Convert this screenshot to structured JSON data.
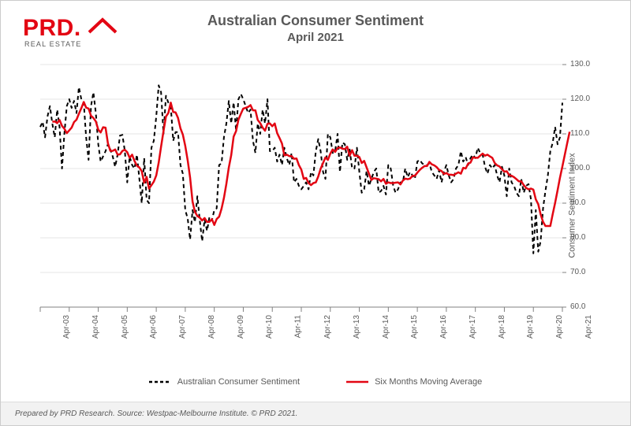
{
  "logo": {
    "main_text": "PRD",
    "sub_text": "REAL ESTATE",
    "brand_color": "#e30613",
    "sub_color": "#595959"
  },
  "chart": {
    "type": "line",
    "title": "Australian Consumer Sentiment",
    "subtitle": "April 2021",
    "y_axis_label": "Consumer Sentiment Index",
    "background_color": "#ffffff",
    "title_color": "#595959",
    "axis_text_color": "#595959",
    "grid_color": "#e6e6e6",
    "axis_line_color": "#808080",
    "tick_color": "#808080",
    "ylim": [
      60,
      130
    ],
    "ytick_step": 10,
    "yticks": [
      60.0,
      70.0,
      80.0,
      90.0,
      100.0,
      110.0,
      120.0,
      130.0
    ],
    "ytick_labels": [
      "60.0",
      "70.0",
      "80.0",
      "90.0",
      "100.0",
      "110.0",
      "120.0",
      "130.0"
    ],
    "x_categories": [
      "Apr-03",
      "Apr-04",
      "Apr-05",
      "Apr-06",
      "Apr-07",
      "Apr-08",
      "Apr-09",
      "Apr-10",
      "Apr-11",
      "Apr-12",
      "Apr-13",
      "Apr-14",
      "Apr-15",
      "Apr-16",
      "Apr-17",
      "Apr-18",
      "Apr-19",
      "Apr-20",
      "Apr-21"
    ],
    "x_major_indices": [
      0,
      12,
      24,
      36,
      48,
      60,
      72,
      84,
      96,
      108,
      120,
      132,
      144,
      156,
      168,
      180,
      192,
      204,
      216
    ],
    "n_points": 217,
    "series": [
      {
        "name": "Australian Consumer Sentiment",
        "color": "#000000",
        "line_width": 2,
        "dash": "5,4",
        "values": [
          112.0,
          113.5,
          109.0,
          115.0,
          118.0,
          113.0,
          109.0,
          117.0,
          112.0,
          100.0,
          110.0,
          118.0,
          120.0,
          117.5,
          119.5,
          116.0,
          123.5,
          120.0,
          119.0,
          109.0,
          102.5,
          118.0,
          122.0,
          116.0,
          107.0,
          102.0,
          103.5,
          105.0,
          107.0,
          105.5,
          103.5,
          100.5,
          104.0,
          109.5,
          109.7,
          105.0,
          96.0,
          103.5,
          101.0,
          100.0,
          104.0,
          97.0,
          90.0,
          103.0,
          91.0,
          90.0,
          106.0,
          108.0,
          115.0,
          124.0,
          122.0,
          110.0,
          121.0,
          119.0,
          118.0,
          108.0,
          110.5,
          110.5,
          101.0,
          98.5,
          88.0,
          85.5,
          79.5,
          88.0,
          84.5,
          92.0,
          85.0,
          79.0,
          85.3,
          82.0,
          86.0,
          85.0,
          88.0,
          88.5,
          101.0,
          101.5,
          109.0,
          113.0,
          119.5,
          113.0,
          119.1,
          111.0,
          120.0,
          121.5,
          120.0,
          118.0,
          116.0,
          117.0,
          108.0,
          104.5,
          113.0,
          110.0,
          117.0,
          113.0,
          120.0,
          105.0,
          105.0,
          106.0,
          102.0,
          104.0,
          101.0,
          106.0,
          103.0,
          101.0,
          104.5,
          96.0,
          97.0,
          95.0,
          94.0,
          95.0,
          96.0,
          94.0,
          99.0,
          98.0,
          105.0,
          108.5,
          105.0,
          99.0,
          97.0,
          110.0,
          109.0,
          104.5,
          105.0,
          110.0,
          99.0,
          107.5,
          107.0,
          102.5,
          105.5,
          100.0,
          100.0,
          106.0,
          99.0,
          93.0,
          94.0,
          99.3,
          95.0,
          97.0,
          99.0,
          100.0,
          93.0,
          93.5,
          95.0,
          92.5,
          101.0,
          100.0,
          95.0,
          93.0,
          94.0,
          96.0,
          96.0,
          100.0,
          97.5,
          99.0,
          98.0,
          97.0,
          102.0,
          102.5,
          101.5,
          101.0,
          101.0,
          101.5,
          99.0,
          98.0,
          97.0,
          99.5,
          96.0,
          99.0,
          101.0,
          98.0,
          96.0,
          97.0,
          100.0,
          101.0,
          105.0,
          102.0,
          103.3,
          101.0,
          103.0,
          104.0,
          103.0,
          106.0,
          104.5,
          104.0,
          100.5,
          98.5,
          101.0,
          100.0,
          101.0,
          98.0,
          96.0,
          100.5,
          98.0,
          92.0,
          100.0,
          96.0,
          95.0,
          93.0,
          92.0,
          97.0,
          93.0,
          95.0,
          95.5,
          91.0,
          75.5,
          88.0,
          76.0,
          79.0,
          88.5,
          93.5,
          98.0,
          105.0,
          107.4,
          112.0,
          107.0,
          109.0,
          119.0
        ]
      },
      {
        "name": "Six Months Moving Average",
        "color": "#e30613",
        "line_width": 2.5,
        "dash": "none",
        "values": [
          null,
          null,
          null,
          null,
          null,
          113.5,
          113.6,
          113.1,
          114.0,
          112.3,
          111.5,
          110.2,
          111.0,
          111.8,
          113.4,
          114.1,
          115.8,
          117.4,
          119.2,
          117.6,
          117.3,
          115.2,
          114.6,
          113.6,
          111.2,
          110.4,
          111.9,
          111.8,
          107.3,
          105.1,
          105.1,
          105.5,
          104.0,
          104.1,
          105.1,
          105.4,
          104.7,
          103.1,
          104.0,
          102.2,
          100.8,
          100.3,
          99.2,
          95.9,
          97.6,
          94.2,
          95.2,
          96.2,
          98.0,
          101.7,
          106.3,
          110.8,
          115.0,
          116.0,
          119.0,
          116.3,
          116.2,
          114.6,
          111.6,
          109.8,
          106.5,
          102.3,
          97.4,
          90.5,
          87.5,
          86.3,
          85.8,
          85.0,
          85.7,
          84.6,
          84.6,
          85.4,
          83.7,
          85.4,
          86.1,
          88.4,
          91.5,
          95.6,
          100.3,
          103.8,
          109.2,
          110.8,
          114.1,
          115.8,
          117.3,
          117.5,
          117.8,
          118.3,
          116.8,
          116.8,
          114.0,
          113.1,
          111.8,
          110.9,
          112.9,
          113.0,
          112.2,
          113.0,
          110.2,
          108.8,
          107.2,
          103.8,
          104.0,
          103.6,
          103.6,
          102.8,
          102.9,
          101.0,
          99.7,
          97.0,
          97.3,
          95.8,
          95.2,
          95.8,
          96.0,
          97.7,
          99.9,
          101.6,
          103.2,
          102.5,
          104.3,
          105.5,
          104.8,
          105.9,
          106.1,
          105.7,
          105.6,
          106.3,
          103.7,
          105.3,
          103.7,
          103.7,
          103.3,
          101.6,
          102.2,
          100.3,
          98.5,
          96.7,
          97.2,
          97.1,
          96.9,
          96.3,
          97.0,
          95.6,
          96.0,
          95.8,
          95.8,
          95.9,
          96.0,
          95.4,
          96.5,
          97.1,
          96.9,
          97.1,
          97.9,
          97.9,
          98.8,
          99.6,
          100.2,
          100.7,
          100.7,
          101.9,
          101.2,
          100.9,
          100.4,
          99.6,
          99.3,
          98.4,
          98.7,
          98.2,
          98.2,
          98.1,
          98.5,
          98.9,
          98.5,
          100.2,
          100.0,
          101.4,
          101.7,
          103.2,
          103.1,
          103.1,
          103.7,
          104.3,
          103.7,
          104.0,
          103.5,
          103.1,
          101.6,
          100.9,
          100.6,
          99.8,
          99.1,
          99.2,
          98.1,
          97.9,
          97.5,
          96.9,
          96.3,
          96.3,
          95.2,
          94.4,
          94.0,
          94.2,
          93.9,
          91.1,
          89.7,
          86.8,
          84.6,
          83.4,
          83.4,
          83.4,
          86.8,
          90.1,
          93.7,
          97.3,
          100.6,
          104.0,
          107.3,
          110.6
        ]
      }
    ],
    "legend": {
      "items": [
        "Australian Consumer Sentiment",
        "Six Months Moving Average"
      ]
    },
    "font": {
      "title_size": 18,
      "subtitle_size": 15,
      "axis_label_size": 11,
      "tick_size": 10,
      "legend_size": 11
    }
  },
  "footer": {
    "text": "Prepared by PRD Research. Source: Westpac-Melbourne Institute. © PRD 2021.",
    "background": "#f2f2f2",
    "text_color": "#595959"
  }
}
